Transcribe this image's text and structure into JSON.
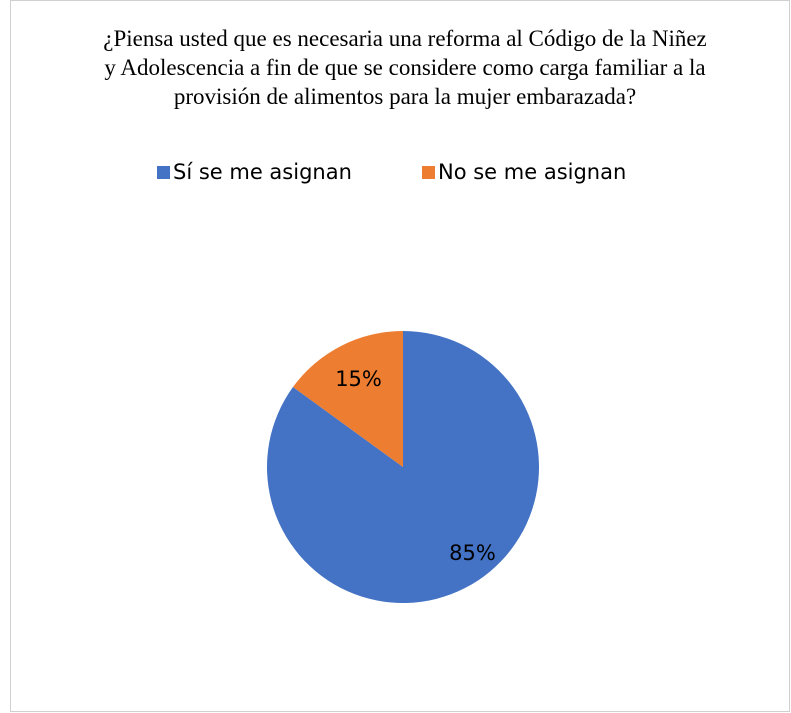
{
  "chart_data": {
    "type": "pie",
    "title": "¿Piensa usted que es necesaria una reforma al Código de la Niñez y Adolescencia a fin de que se considere como carga familiar a la provisión de alimentos para la mujer embarazada?",
    "categories": [
      "Sí se me asignan",
      "No se me asignan"
    ],
    "values": [
      85,
      15
    ],
    "value_labels": [
      "85%",
      "15%"
    ],
    "colors": [
      "#4472c4",
      "#ed7d31"
    ],
    "legend": "top"
  }
}
